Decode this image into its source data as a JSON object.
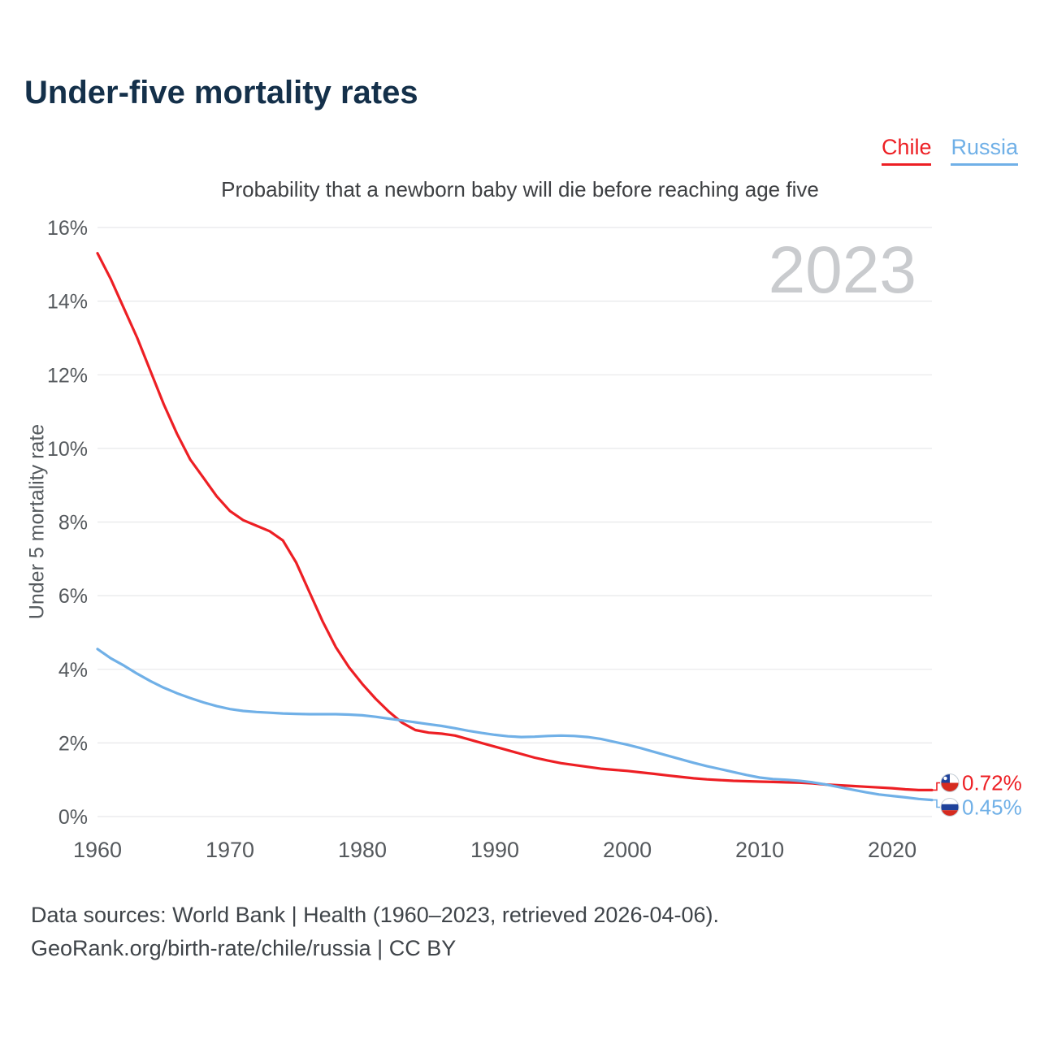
{
  "page": {
    "title": "Under-five mortality rates",
    "subtitle": "Probability that a newborn baby will die before reaching age five",
    "watermark": "2023",
    "footer_line1": "Data sources: World Bank | Health (1960–2023, retrieved 2026-04-06).",
    "footer_line2": "GeoRank.org/birth-rate/chile/russia | CC BY"
  },
  "legend": [
    {
      "label": "Chile",
      "color": "#ed1f24"
    },
    {
      "label": "Russia",
      "color": "#70b0e7"
    }
  ],
  "chart_data": {
    "type": "line",
    "title": "Under-five mortality rates",
    "subtitle": "Probability that a newborn baby will die before reaching age five",
    "xlabel": "",
    "ylabel": "Under 5 mortality rate",
    "ylim": [
      0,
      16
    ],
    "yticks": [
      0,
      2,
      4,
      6,
      8,
      10,
      12,
      14,
      16
    ],
    "ytick_suffix": "%",
    "xticks": [
      1960,
      1970,
      1980,
      1990,
      2000,
      2010,
      2020
    ],
    "grid": true,
    "legend_position": "top-right",
    "year_annotation": "2023",
    "x": [
      1960,
      1961,
      1962,
      1963,
      1964,
      1965,
      1966,
      1967,
      1968,
      1969,
      1970,
      1971,
      1972,
      1973,
      1974,
      1975,
      1976,
      1977,
      1978,
      1979,
      1980,
      1981,
      1982,
      1983,
      1984,
      1985,
      1986,
      1987,
      1988,
      1989,
      1990,
      1991,
      1992,
      1993,
      1994,
      1995,
      1996,
      1997,
      1998,
      1999,
      2000,
      2001,
      2002,
      2003,
      2004,
      2005,
      2006,
      2007,
      2008,
      2009,
      2010,
      2011,
      2012,
      2013,
      2014,
      2015,
      2016,
      2017,
      2018,
      2019,
      2020,
      2021,
      2022,
      2023
    ],
    "series": [
      {
        "name": "Chile",
        "color": "#ed1f24",
        "end_label": "0.72%",
        "flag": "chile",
        "values": [
          15.3,
          14.6,
          13.8,
          13.0,
          12.1,
          11.2,
          10.4,
          9.7,
          9.2,
          8.7,
          8.3,
          8.05,
          7.9,
          7.75,
          7.5,
          6.9,
          6.1,
          5.3,
          4.6,
          4.05,
          3.6,
          3.2,
          2.85,
          2.55,
          2.35,
          2.28,
          2.25,
          2.2,
          2.1,
          2.0,
          1.9,
          1.8,
          1.7,
          1.6,
          1.52,
          1.45,
          1.4,
          1.35,
          1.3,
          1.27,
          1.24,
          1.2,
          1.16,
          1.12,
          1.08,
          1.04,
          1.01,
          0.99,
          0.97,
          0.96,
          0.95,
          0.94,
          0.93,
          0.92,
          0.9,
          0.87,
          0.85,
          0.83,
          0.81,
          0.79,
          0.77,
          0.74,
          0.72,
          0.72
        ]
      },
      {
        "name": "Russia",
        "color": "#70b0e7",
        "end_label": "0.45%",
        "flag": "russia",
        "values": [
          4.55,
          4.3,
          4.1,
          3.88,
          3.68,
          3.5,
          3.35,
          3.22,
          3.1,
          3.0,
          2.92,
          2.87,
          2.84,
          2.82,
          2.8,
          2.79,
          2.78,
          2.78,
          2.78,
          2.77,
          2.75,
          2.71,
          2.66,
          2.61,
          2.56,
          2.51,
          2.46,
          2.4,
          2.33,
          2.27,
          2.22,
          2.18,
          2.16,
          2.17,
          2.19,
          2.2,
          2.19,
          2.16,
          2.11,
          2.03,
          1.95,
          1.86,
          1.76,
          1.66,
          1.56,
          1.46,
          1.37,
          1.29,
          1.21,
          1.13,
          1.06,
          1.02,
          1.0,
          0.97,
          0.93,
          0.87,
          0.8,
          0.73,
          0.66,
          0.6,
          0.56,
          0.52,
          0.48,
          0.45
        ]
      }
    ]
  }
}
